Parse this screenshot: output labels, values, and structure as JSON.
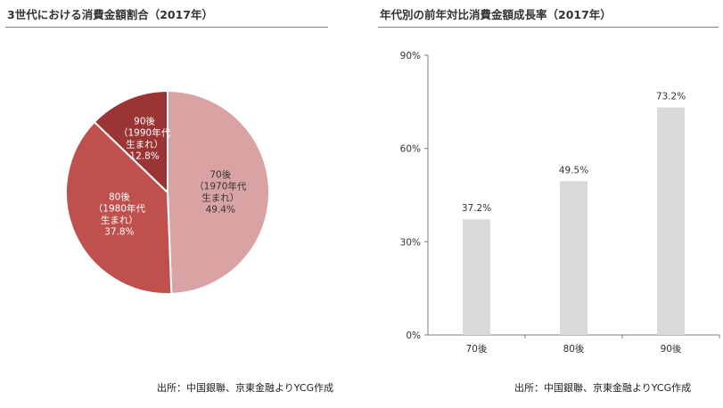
{
  "left": {
    "title": "3世代における消費金額割合（2017年）",
    "source": "出所：中国銀聯、京東金融よりYCG作成"
  },
  "right": {
    "title": "年代別の前年対比消費金額成長率（2017年）",
    "source": "出所：中国銀聯、京東金融よりYCG作成"
  },
  "chart_data": [
    {
      "type": "pie",
      "title": "3世代における消費金額割合（2017年）",
      "slices": [
        {
          "label": "70後",
          "sublabel_1": "（1970年代",
          "sublabel_2": "生まれ）",
          "value": 49.4,
          "value_text": "49.4%",
          "color": "#d9a3a3",
          "text_color": "#333333"
        },
        {
          "label": "80後",
          "sublabel_1": "（1980年代",
          "sublabel_2": "生まれ）",
          "value": 37.8,
          "value_text": "37.8%",
          "color": "#c0504d",
          "text_color": "#ffffff"
        },
        {
          "label": "90後",
          "sublabel_1": "（1990年代",
          "sublabel_2": "生まれ）",
          "value": 12.8,
          "value_text": "12.8%",
          "color": "#9b3535",
          "text_color": "#ffffff"
        }
      ]
    },
    {
      "type": "bar",
      "title": "年代別の前年対比消費金額成長率（2017年）",
      "categories": [
        "70後",
        "80後",
        "90後"
      ],
      "values": [
        37.2,
        49.5,
        73.2
      ],
      "value_labels": [
        "37.2%",
        "49.5%",
        "73.2%"
      ],
      "ylim": [
        0,
        90
      ],
      "yticks": [
        0,
        30,
        60,
        90
      ],
      "ytick_labels": [
        "0%",
        "30%",
        "60%",
        "90%"
      ],
      "bar_color": "#d9d9d9",
      "grid": false
    }
  ]
}
